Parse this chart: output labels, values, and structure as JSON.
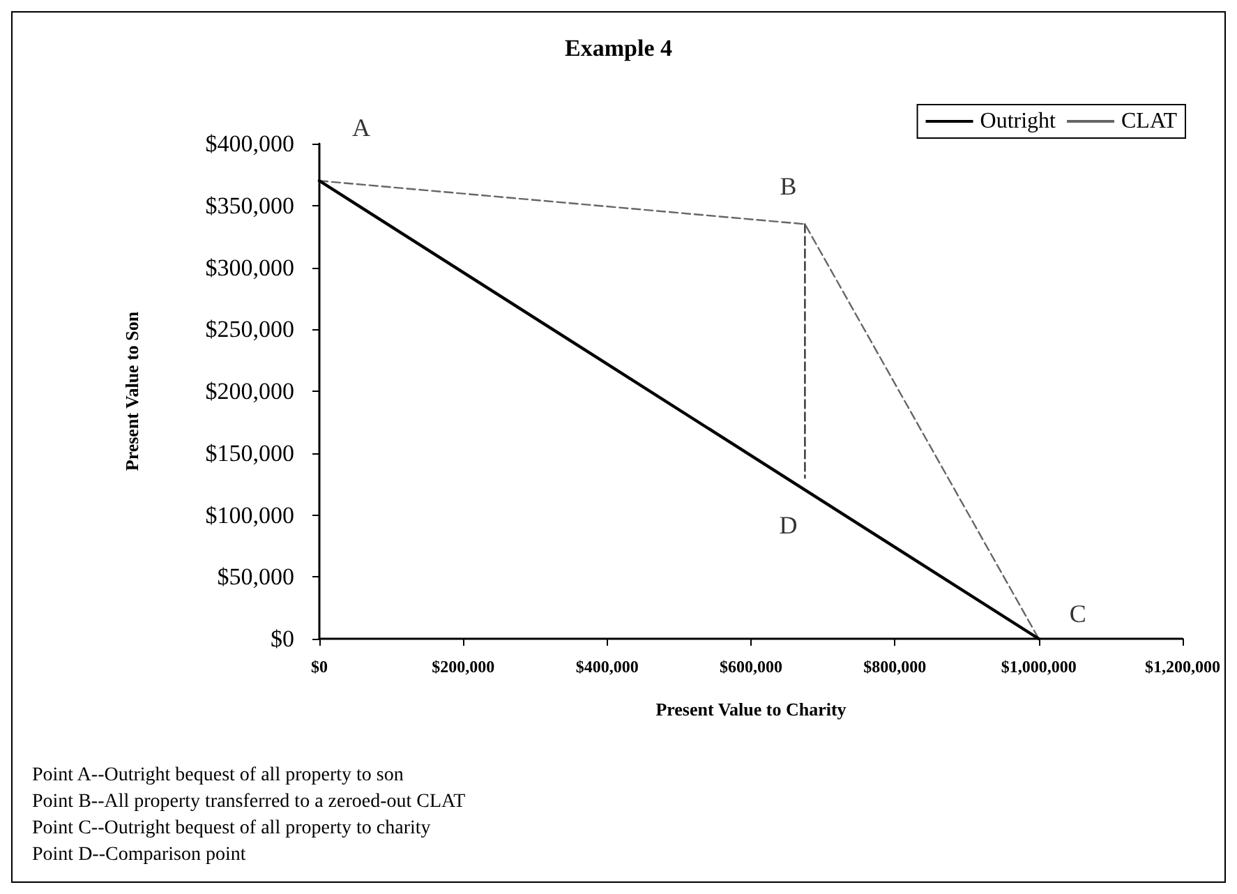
{
  "chart_data": {
    "type": "line",
    "title": "Example 4",
    "xlabel": "Present Value to Charity",
    "ylabel": "Present Value to Son",
    "xlim": [
      0,
      1200000
    ],
    "xticks": [
      {
        "value": 0,
        "label": "$0"
      },
      {
        "value": 200000,
        "label": "$200,000"
      },
      {
        "value": 400000,
        "label": "$400,000"
      },
      {
        "value": 600000,
        "label": "$600,000"
      },
      {
        "value": 800000,
        "label": "$800,000"
      },
      {
        "value": 1000000,
        "label": "$1,000,000"
      },
      {
        "value": 1200000,
        "label": "$1,200,000"
      }
    ],
    "ylim": [
      0,
      400000
    ],
    "yticks": [
      {
        "value": 0,
        "label": "$0"
      },
      {
        "value": 50000,
        "label": "$50,000"
      },
      {
        "value": 100000,
        "label": "$100,000"
      },
      {
        "value": 150000,
        "label": "$150,000"
      },
      {
        "value": 200000,
        "label": "$200,000"
      },
      {
        "value": 250000,
        "label": "$250,000"
      },
      {
        "value": 300000,
        "label": "$300,000"
      },
      {
        "value": 350000,
        "label": "$350,000"
      },
      {
        "value": 400000,
        "label": "$400,000"
      }
    ],
    "series": [
      {
        "name": "Outright",
        "color": "#000000",
        "line_style": "solid",
        "x": [
          0,
          1000000
        ],
        "values": [
          370000,
          0
        ]
      },
      {
        "name": "CLAT",
        "color": "#666666",
        "line_style": "dashed",
        "x": [
          0,
          675000,
          1000000
        ],
        "values": [
          370000,
          335000,
          0
        ]
      },
      {
        "color": "#333333",
        "line_style": "dashed",
        "x": [
          675000,
          675000
        ],
        "values": [
          335000,
          130000
        ]
      }
    ],
    "marker": "none",
    "grid": false,
    "legend": "top right",
    "annotations": [
      {
        "text": "A",
        "x": 0,
        "y": 370000
      },
      {
        "text": "B",
        "x": 675000,
        "y": 335000
      },
      {
        "text": "C",
        "x": 1000000,
        "y": 0
      },
      {
        "text": "D",
        "x": 675000,
        "y": 120000
      },
      "Point A--Outright bequest of all property to son",
      "Point B--All property transferred to a zeroed-out CLAT",
      "Point C--Outright bequest of all property to charity",
      "Point D--Comparison point"
    ]
  }
}
